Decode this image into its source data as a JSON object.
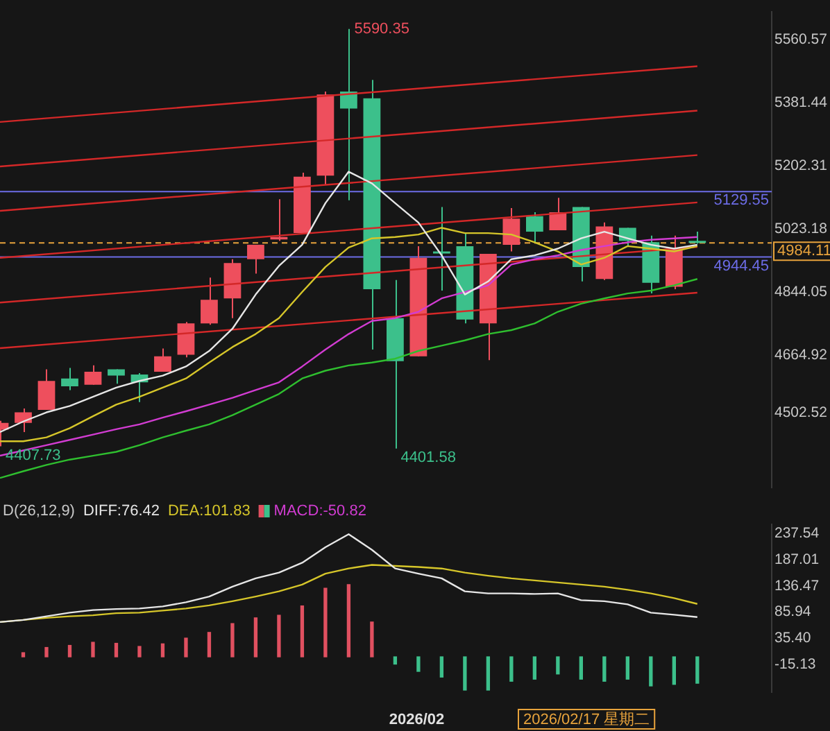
{
  "chart_data": [
    {
      "type": "candlestick",
      "categories": [
        null,
        null,
        null,
        null,
        null,
        null,
        null,
        null,
        null,
        null,
        null,
        null,
        null,
        null,
        null,
        null,
        null,
        null,
        null,
        null,
        null,
        null,
        null,
        null,
        null,
        null,
        null,
        null,
        null,
        null,
        null
      ],
      "ohlc": [
        [
          4455,
          4480,
          4407.73,
          4474
        ],
        [
          4474,
          4515,
          4448,
          4504
        ],
        [
          4511,
          4626,
          4511,
          4593
        ],
        [
          4600,
          4630,
          4567,
          4578
        ],
        [
          4582,
          4637,
          4582,
          4619
        ],
        [
          4626,
          4626,
          4585,
          4608
        ],
        [
          4611,
          4615,
          4533,
          4589
        ],
        [
          4619,
          4685,
          4619,
          4663
        ],
        [
          4667,
          4760,
          4660,
          4756
        ],
        [
          4756,
          4886,
          4752,
          4823
        ],
        [
          4827,
          4938,
          4771,
          4927
        ],
        [
          4938,
          4979,
          4897,
          4979
        ],
        [
          4994,
          5108,
          4990,
          5001
        ],
        [
          5012,
          5183,
          5012,
          5172
        ],
        [
          5175,
          5413,
          5149,
          5405
        ],
        [
          5413,
          5590.35,
          5105,
          5365
        ],
        [
          5394,
          5446,
          4682,
          4853
        ],
        [
          4771,
          4879,
          4401.58,
          4649
        ],
        [
          4663,
          4975,
          4663,
          4942
        ],
        [
          4960,
          5086,
          4849,
          4955
        ],
        [
          4975,
          5012,
          4756,
          4767
        ],
        [
          4756,
          4953,
          4652,
          4953
        ],
        [
          4979,
          5083,
          4960,
          5053
        ],
        [
          5060,
          5071,
          4986,
          5016
        ],
        [
          5020,
          5112,
          5020,
          5071
        ],
        [
          5086,
          5086,
          4875,
          4916
        ],
        [
          4882,
          5042,
          4879,
          5031
        ],
        [
          5027,
          5027,
          4975,
          4990
        ],
        [
          4986,
          5005,
          4841,
          4871
        ],
        [
          4860,
          5005,
          4853,
          4968
        ],
        [
          4990,
          5016,
          4982,
          4984.11
        ]
      ],
      "series": [
        {
          "type": "line",
          "color": "#e6e6e6",
          "values": [
            4448,
            4478,
            4504,
            4522,
            4548,
            4574,
            4593,
            4608,
            4634,
            4678,
            4741,
            4838,
            4919,
            4979,
            5097,
            5186,
            5153,
            5097,
            5042,
            4949,
            4838,
            4875,
            4938,
            4949,
            4968,
            4997,
            5016,
            4997,
            4979,
            4968,
            4979
          ]
        },
        {
          "type": "line",
          "color": "#d6c62a",
          "values": [
            4422,
            4422,
            4433,
            4459,
            4493,
            4526,
            4548,
            4574,
            4600,
            4645,
            4689,
            4726,
            4771,
            4845,
            4916,
            4971,
            4997,
            5001,
            5008,
            5027,
            5012,
            5012,
            5008,
            4986,
            4960,
            4923,
            4942,
            4975,
            4968,
            4960,
            4975
          ]
        },
        {
          "type": "line",
          "color": "#d23cd2",
          "values": [
            4381,
            4396,
            4411,
            4426,
            4441,
            4456,
            4470,
            4489,
            4507,
            4526,
            4545,
            4567,
            4589,
            4634,
            4682,
            4726,
            4763,
            4771,
            4789,
            4827,
            4845,
            4864,
            4923,
            4938,
            4949,
            4964,
            4975,
            4986,
            4993,
            4997,
            5001
          ]
        },
        {
          "type": "line",
          "color": "#2fbf2f",
          "values": [
            4318,
            4337,
            4355,
            4370,
            4381,
            4392,
            4411,
            4433,
            4452,
            4470,
            4496,
            4526,
            4556,
            4600,
            4622,
            4637,
            4645,
            4656,
            4678,
            4693,
            4708,
            4726,
            4737,
            4756,
            4789,
            4812,
            4827,
            4841,
            4849,
            4864,
            4882
          ]
        },
        {
          "type": "line",
          "color": "#d42828",
          "values": [
            5327,
            null,
            null,
            null,
            null,
            null,
            null,
            null,
            null,
            null,
            null,
            null,
            null,
            null,
            null,
            null,
            null,
            null,
            null,
            null,
            null,
            null,
            null,
            null,
            null,
            null,
            null,
            null,
            null,
            null,
            5485
          ]
        },
        {
          "type": "line",
          "color": "#d42828",
          "values": [
            5201,
            null,
            null,
            null,
            null,
            null,
            null,
            null,
            null,
            null,
            null,
            null,
            null,
            null,
            null,
            null,
            null,
            null,
            null,
            null,
            null,
            null,
            null,
            null,
            null,
            null,
            null,
            null,
            null,
            null,
            5359
          ]
        },
        {
          "type": "line",
          "color": "#d42828",
          "values": [
            5075,
            null,
            null,
            null,
            null,
            null,
            null,
            null,
            null,
            null,
            null,
            null,
            null,
            null,
            null,
            null,
            null,
            null,
            null,
            null,
            null,
            null,
            null,
            null,
            null,
            null,
            null,
            null,
            null,
            null,
            5233
          ]
        },
        {
          "type": "line",
          "color": "#d42828",
          "values": [
            4942,
            null,
            null,
            null,
            null,
            null,
            null,
            null,
            null,
            null,
            null,
            null,
            null,
            null,
            null,
            null,
            null,
            null,
            null,
            null,
            null,
            null,
            null,
            null,
            null,
            null,
            null,
            null,
            null,
            null,
            5099
          ]
        },
        {
          "type": "line",
          "color": "#d42828",
          "values": [
            4815,
            null,
            null,
            null,
            null,
            null,
            null,
            null,
            null,
            null,
            null,
            null,
            null,
            null,
            null,
            null,
            null,
            null,
            null,
            null,
            null,
            null,
            null,
            null,
            null,
            null,
            null,
            null,
            null,
            null,
            4973
          ]
        },
        {
          "type": "line",
          "color": "#d42828",
          "values": [
            4686,
            null,
            null,
            null,
            null,
            null,
            null,
            null,
            null,
            null,
            null,
            null,
            null,
            null,
            null,
            null,
            null,
            null,
            null,
            null,
            null,
            null,
            null,
            null,
            null,
            null,
            null,
            null,
            null,
            null,
            4843
          ]
        }
      ],
      "ylim": [
        4290,
        5640
      ],
      "yticks": [
        {
          "value": 5560.57,
          "label": "5560.57"
        },
        {
          "value": 5381.44,
          "label": "5381.44"
        },
        {
          "value": 5202.31,
          "label": "5202.31"
        },
        {
          "value": 5023.18,
          "label": "5023.18"
        },
        {
          "value": 4844.05,
          "label": "4844.05"
        },
        {
          "value": 4664.92,
          "label": "4664.92"
        },
        {
          "value": 4502.52,
          "label": "4502.52"
        }
      ],
      "ref_lines": [
        {
          "axis": "y",
          "value": 5129.55,
          "label": "5129.55",
          "color": "#6c6ce6"
        },
        {
          "axis": "y",
          "value": 4944.45,
          "label": "4944.45",
          "color": "#6c6ce6"
        },
        {
          "axis": "y",
          "value": 4984.11,
          "label": "4984.11",
          "color": "#e8a33c",
          "line_style": "dashed"
        }
      ],
      "annotations": [
        "5590.35",
        "4401.58",
        "4407.73"
      ],
      "tick_labels": "y"
    },
    {
      "type": "line",
      "title": "D(26,12,9)",
      "categories": [
        null,
        null,
        null,
        null,
        null,
        null,
        null,
        null,
        null,
        null,
        null,
        null,
        null,
        null,
        null,
        null,
        null,
        null,
        null,
        null,
        null,
        null,
        null,
        null,
        null,
        null,
        null,
        null,
        null,
        null,
        null
      ],
      "series": [
        {
          "name": "DIFF:76.42",
          "type": "line",
          "color": "#e6e6e6",
          "values": [
            67,
            71,
            78,
            85,
            90,
            92,
            93,
            97,
            105,
            116,
            135,
            151,
            162,
            181,
            211,
            236,
            206,
            170,
            160,
            151,
            126,
            122,
            122,
            121,
            122,
            109,
            107,
            101,
            85,
            81,
            76.42
          ]
        },
        {
          "name": "DEA:101.83",
          "type": "line",
          "color": "#d6c62a",
          "values": [
            67,
            71,
            75,
            78,
            80,
            84,
            85,
            89,
            93,
            99,
            107,
            116,
            126,
            139,
            160,
            170,
            177,
            175,
            173,
            170,
            162,
            156,
            151,
            147,
            143,
            139,
            135,
            129,
            122,
            113,
            101.83
          ]
        },
        {
          "name": "MACD:-50.82",
          "type": "bar",
          "color": "#d23cd2",
          "colors": [
            "#e05060",
            "#e05060",
            "#e05060",
            "#e05060",
            "#e05060",
            "#e05060",
            "#e05060",
            "#e05060",
            "#e05060",
            "#e05060",
            "#e05060",
            "#e05060",
            "#e05060",
            "#e05060",
            "#e05060",
            "#e05060",
            "#e05060",
            "#3cc08b",
            "#3cc08b",
            "#3cc08b",
            "#3cc08b",
            "#3cc08b",
            "#3cc08b",
            "#3cc08b",
            "#3cc08b",
            "#3cc08b",
            "#3cc08b",
            "#3cc08b",
            "#3cc08b",
            "#3cc08b",
            "#3cc08b"
          ],
          "values": [
            null,
            8,
            18,
            22,
            28,
            26,
            20,
            25,
            36,
            47,
            64,
            75,
            80,
            98,
            132,
            139,
            67,
            -14,
            -28,
            -39,
            -64,
            -64,
            -47,
            -43,
            -33,
            -43,
            -47,
            -43,
            -56,
            -53,
            -50.82
          ]
        }
      ],
      "ylim": [
        -68,
        255
      ],
      "yticks": [
        {
          "value": 237.54,
          "label": "237.54"
        },
        {
          "value": 187.01,
          "label": "187.01"
        },
        {
          "value": 136.47,
          "label": "136.47"
        },
        {
          "value": 85.94,
          "label": "85.94"
        },
        {
          "value": 35.4,
          "label": "35.40"
        },
        {
          "value": -15.13,
          "label": "-15.13"
        }
      ],
      "legend": "top left",
      "annotations": [
        "2026/02",
        "2026/02/17 星期二"
      ]
    }
  ]
}
